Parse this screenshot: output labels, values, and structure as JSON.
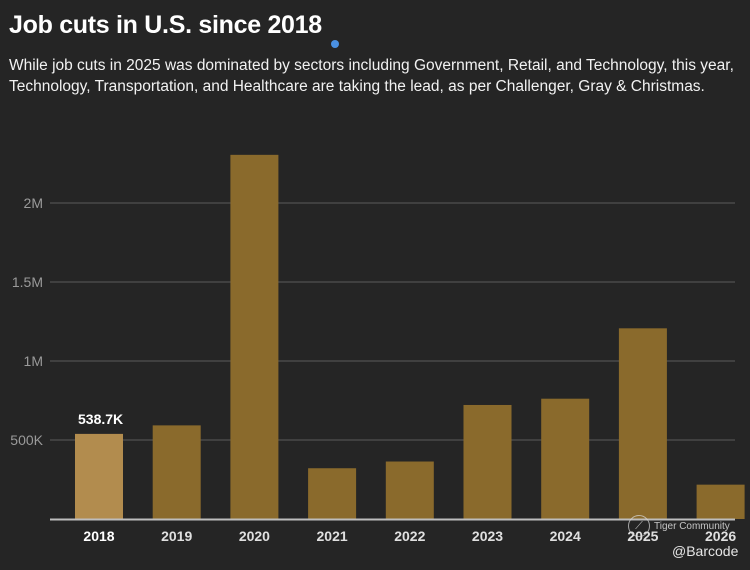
{
  "header": {
    "title": "Job cuts in U.S. since 2018",
    "subtitle": "While job cuts in 2025 was dominated by sectors including Government, Retail, and Technology, this year, Technology, Transportation, and Healthcare are taking the lead, as per Challenger, Gray & Christmas."
  },
  "colors": {
    "background": "#252525",
    "bar": "#8a6a2c",
    "bar_highlight": "#b28c4e",
    "gridline": "#4a4a4a",
    "axis": "#bdbdbd"
  },
  "watermark": {
    "icon": "tiger-community-logo-icon",
    "brand": "Tiger Community",
    "handle": "@Barcode"
  },
  "chart_data": {
    "type": "bar",
    "title": "Job cuts in U.S. since 2018",
    "xlabel": "",
    "ylabel": "",
    "categories": [
      "2018",
      "2019",
      "2020",
      "2021",
      "2022",
      "2023",
      "2024",
      "2025",
      "2026"
    ],
    "values": [
      538700,
      592600,
      2304800,
      321300,
      363800,
      721700,
      761400,
      1206900,
      217400
    ],
    "highlight_index": 0,
    "data_labels": [
      {
        "index": 0,
        "text": "538.7K"
      }
    ],
    "ylim": [
      0,
      2400000
    ],
    "yticks": [
      500000,
      1000000,
      1500000,
      2000000
    ],
    "ytick_labels": [
      "500K",
      "1M",
      "1.5M",
      "2M"
    ],
    "grid": true,
    "legend": "none"
  }
}
